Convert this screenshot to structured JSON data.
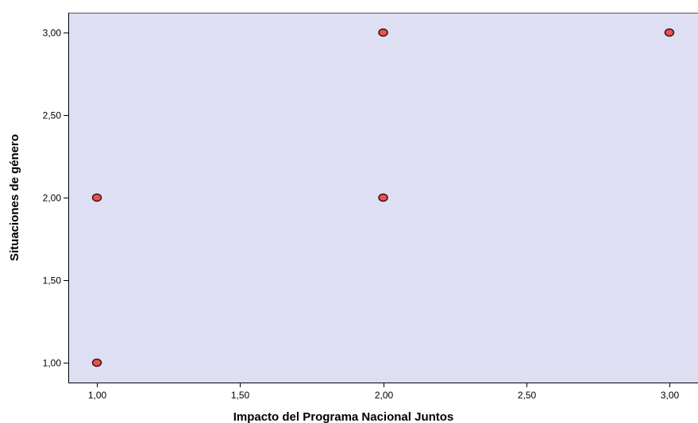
{
  "chart_data": {
    "type": "scatter",
    "title": "",
    "xlabel": "Impacto del Programa Nacional Juntos",
    "ylabel": "Situaciones de género",
    "xlim": [
      0.9,
      3.1
    ],
    "ylim": [
      0.88,
      3.12
    ],
    "x_ticks": [
      1.0,
      1.5,
      2.0,
      2.5,
      3.0
    ],
    "x_tick_labels": [
      "1,00",
      "1,50",
      "2,00",
      "2,50",
      "3,00"
    ],
    "y_ticks": [
      1.0,
      1.5,
      2.0,
      2.5,
      3.0
    ],
    "y_tick_labels": [
      "1,00",
      "1,50",
      "2,00",
      "2,50",
      "3,00"
    ],
    "grid": false,
    "points": [
      {
        "x": 1.0,
        "y": 1.0
      },
      {
        "x": 1.0,
        "y": 2.0
      },
      {
        "x": 2.0,
        "y": 2.0
      },
      {
        "x": 2.0,
        "y": 3.0
      },
      {
        "x": 3.0,
        "y": 3.0
      }
    ]
  },
  "colors": {
    "plot_background": "#dfdff4",
    "marker_fill": "#e8534f",
    "marker_stroke": "#3a1010",
    "axis": "#000000"
  }
}
